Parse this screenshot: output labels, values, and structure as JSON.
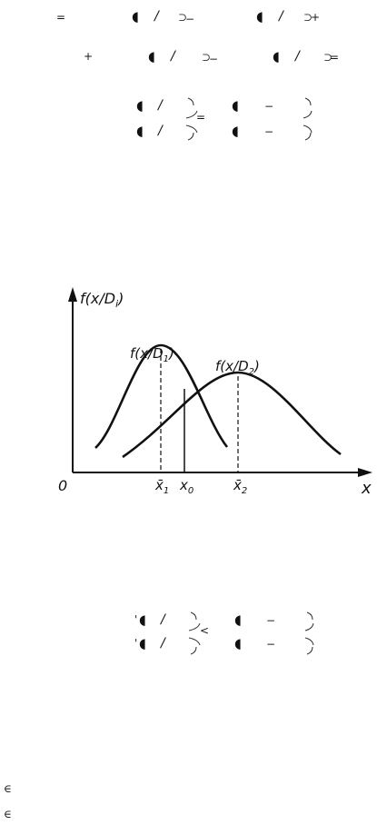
{
  "equation_line_1": {
    "equals": "=",
    "moon_a": "◖",
    "slash_a": "/",
    "brace_a": "⊃",
    "minus": "−",
    "moon_b": "◖",
    "slash_b": "/",
    "brace_b": "⊃",
    "plus": "+"
  },
  "equation_line_2": {
    "plus": "+",
    "moon_a": "◖",
    "slash_a": "/",
    "brace_a": "⊃",
    "minus": "−",
    "moon_b": "◖",
    "slash_b": "/",
    "brace_b": "⊃",
    "equals": "="
  },
  "ratio_1": {
    "num_moon": "◖",
    "num_slash": "/",
    "den_moon": "◖",
    "den_slash": "/",
    "relation": "=",
    "rhs_num_moon": "◖",
    "rhs_num_minus": "−",
    "rhs_den_moon": "◖",
    "rhs_den_minus": "−"
  },
  "figure": {
    "y_axis_label": "f(x/D",
    "y_axis_label_sub": "i",
    "y_axis_label_close": ")",
    "curve1_label": "f(x/D",
    "curve1_label_sub": "1",
    "curve1_label_close": ")",
    "curve2_label": "f(x/D",
    "curve2_label_sub": "2",
    "curve2_label_close": ")",
    "origin_label": "0",
    "x_axis_label": "x",
    "tick_x1": "x̄",
    "tick_x1_sub": "1",
    "tick_x0": "x",
    "tick_x0_sub": "0",
    "tick_x2": "x̄",
    "tick_x2_sub": "2"
  },
  "ratio_2": {
    "num_prime": "'",
    "num_moon": "◖",
    "num_slash": "/",
    "den_prime": "'",
    "den_moon": "◖",
    "den_slash": "/",
    "relation": "<",
    "rhs_num_moon": "◖",
    "rhs_num_minus": "−",
    "rhs_den_moon": "◖",
    "rhs_den_minus": "−"
  },
  "footer": {
    "element_of_1": "∈",
    "element_of_2": "∈"
  }
}
